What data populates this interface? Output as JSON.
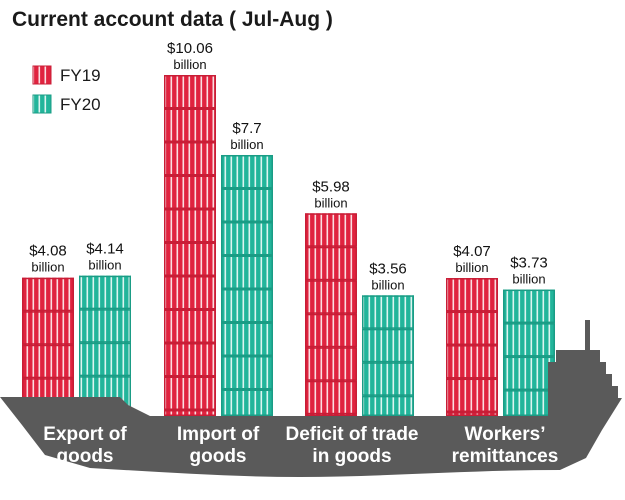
{
  "chart_data": {
    "type": "bar",
    "title": "Current account data ( Jul-Aug )",
    "categories": [
      [
        "Export of",
        "goods"
      ],
      [
        "Import of",
        "goods"
      ],
      [
        "Deficit of trade",
        "in goods"
      ],
      [
        "Workers’",
        "remittances"
      ]
    ],
    "series": [
      {
        "name": "FY19",
        "color": "#e0233f",
        "values": [
          4.08,
          10.06,
          5.98,
          4.07
        ],
        "labels": [
          "$4.08",
          "$10.06",
          "$5.98",
          "$4.07"
        ]
      },
      {
        "name": "FY20",
        "color": "#22b59b",
        "values": [
          4.14,
          7.7,
          3.56,
          3.73
        ],
        "labels": [
          "$4.14",
          "$7.7",
          "$3.56",
          "$3.73"
        ]
      }
    ],
    "unit_label": "billion",
    "legend_position": "top-left",
    "grid": false,
    "ylim": [
      0,
      10.06
    ]
  }
}
